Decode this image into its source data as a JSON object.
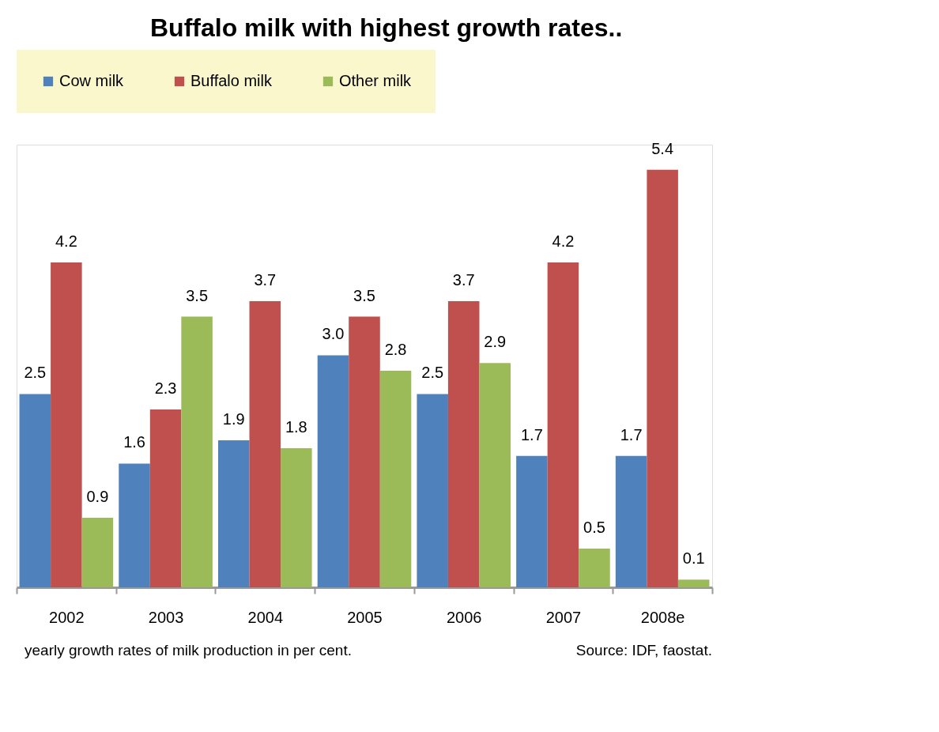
{
  "chart_data": {
    "type": "bar",
    "title": "Buffalo milk with highest growth rates..",
    "categories": [
      "2002",
      "2003",
      "2004",
      "2005",
      "2006",
      "2007",
      "2008e"
    ],
    "series": [
      {
        "name": "Cow milk",
        "color": "#4f81bd",
        "values": [
          2.5,
          1.6,
          1.9,
          3.0,
          2.5,
          1.7,
          1.7
        ],
        "value_labels": [
          "2.5",
          "1.6",
          "1.9",
          "3.0",
          "2.5",
          "1.7",
          "1.7"
        ]
      },
      {
        "name": "Buffalo milk",
        "color": "#c0504d",
        "values": [
          4.2,
          2.3,
          3.7,
          3.5,
          3.7,
          4.2,
          5.4
        ],
        "value_labels": [
          "4.2",
          "2.3",
          "3.7",
          "3.5",
          "3.7",
          "4.2",
          "5.4"
        ]
      },
      {
        "name": "Other milk",
        "color": "#9bbb59",
        "values": [
          0.9,
          3.5,
          1.8,
          2.8,
          2.9,
          0.5,
          0.1
        ],
        "value_labels": [
          "0.9",
          "3.5",
          "1.8",
          "2.8",
          "2.9",
          "0.5",
          "0.1"
        ]
      }
    ],
    "grid": false,
    "legend": "top",
    "annotations": [
      "yearly growth rates of milk production  in per cent.",
      "Source: IDF, faostat."
    ]
  }
}
